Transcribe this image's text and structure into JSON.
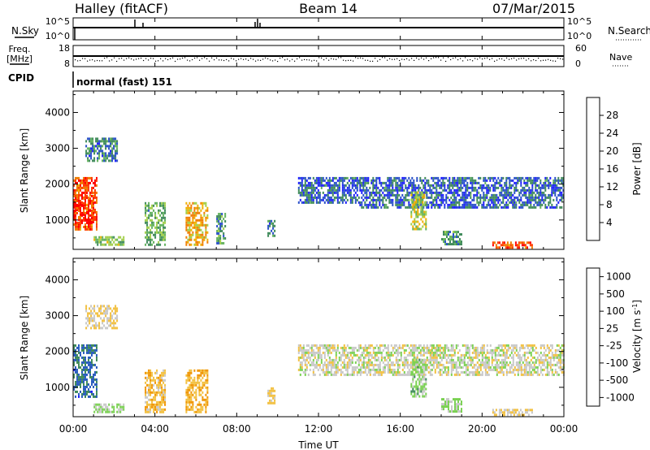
{
  "header": {
    "station": "Halley (fitACF)",
    "beam": "Beam 14",
    "date": "07/Mar/2015"
  },
  "top_panel": {
    "left_label": "N.Sky",
    "right_label": "N.Search",
    "left_ticks": [
      "10^5",
      "10^0"
    ],
    "right_ticks": [
      "10^5",
      "10^0"
    ]
  },
  "freq_panel": {
    "left_label_1": "Freq.",
    "left_label_2": "[MHz]",
    "right_label": "Nave",
    "left_ticks": [
      "18",
      "8"
    ],
    "right_ticks": [
      "60",
      "0"
    ]
  },
  "cpid": {
    "label": "CPID",
    "value": "normal (fast) 151"
  },
  "time_axis": {
    "label": "Time UT",
    "ticks": [
      "00:00",
      "04:00",
      "08:00",
      "12:00",
      "16:00",
      "20:00",
      "00:00"
    ]
  },
  "colors": {
    "power": [
      "#1d1dff",
      "#2850c8",
      "#3f8a5a",
      "#62b15d",
      "#a2ce4a",
      "#f0b000",
      "#f07d00",
      "#ff3d00",
      "#ff0000"
    ],
    "velocity": [
      "#ff0000",
      "#ee5200",
      "#f09400",
      "#f2c040",
      "#c8c8c8",
      "#7ad152",
      "#3f8a5a",
      "#2a5cbf",
      "#1d1dff"
    ]
  },
  "chart_data": [
    {
      "type": "heatmap",
      "title": "",
      "xlabel": "Time UT",
      "ylabel": "Slant Range [km]",
      "xlim": [
        0,
        24
      ],
      "ylim": [
        180,
        4600
      ],
      "yticks": [
        "1000",
        "2000",
        "3000",
        "4000"
      ],
      "colorbar": {
        "label": "Power [dB]",
        "ticks": [
          "4",
          "8",
          "12",
          "16",
          "20",
          "24",
          "28"
        ],
        "range": [
          0,
          32
        ]
      },
      "regions": [
        {
          "x": [
            0.0,
            1.2
          ],
          "y": [
            700,
            2200
          ],
          "value": 26
        },
        {
          "x": [
            0.0,
            1.0
          ],
          "y": [
            900,
            1700
          ],
          "value": 28
        },
        {
          "x": [
            0.6,
            2.2
          ],
          "y": [
            2600,
            3300
          ],
          "value": 8
        },
        {
          "x": [
            1.0,
            2.5
          ],
          "y": [
            250,
            550
          ],
          "value": 14
        },
        {
          "x": [
            3.5,
            4.5
          ],
          "y": [
            300,
            1500
          ],
          "value": 12
        },
        {
          "x": [
            5.5,
            6.6
          ],
          "y": [
            250,
            1500
          ],
          "value": 20
        },
        {
          "x": [
            7.0,
            7.5
          ],
          "y": [
            300,
            1200
          ],
          "value": 10
        },
        {
          "x": [
            9.5,
            9.9
          ],
          "y": [
            500,
            1000
          ],
          "value": 8
        },
        {
          "x": [
            11.0,
            14.0
          ],
          "y": [
            1450,
            2200
          ],
          "value": 6
        },
        {
          "x": [
            14.0,
            24.0
          ],
          "y": [
            1350,
            2200
          ],
          "value": 6
        },
        {
          "x": [
            16.5,
            17.3
          ],
          "y": [
            700,
            1800
          ],
          "value": 16
        },
        {
          "x": [
            18.0,
            19.0
          ],
          "y": [
            300,
            700
          ],
          "value": 10
        },
        {
          "x": [
            20.5,
            22.5
          ],
          "y": [
            200,
            400
          ],
          "value": 26
        }
      ]
    },
    {
      "type": "heatmap",
      "title": "",
      "xlabel": "Time UT",
      "ylabel": "Slant Range [km]",
      "xlim": [
        0,
        24
      ],
      "ylim": [
        180,
        4600
      ],
      "yticks": [
        "1000",
        "2000",
        "3000",
        "4000"
      ],
      "colorbar": {
        "label": "Velocity [m s^-1]",
        "ticks": [
          "1000",
          "500",
          "100",
          "25",
          "-25",
          "-100",
          "-500",
          "-1000"
        ],
        "range": [
          -1200,
          1200
        ]
      },
      "regions": [
        {
          "x": [
            0.0,
            1.2
          ],
          "y": [
            700,
            2200
          ],
          "value": 700
        },
        {
          "x": [
            0.6,
            2.2
          ],
          "y": [
            2600,
            3300
          ],
          "value": -150
        },
        {
          "x": [
            1.0,
            2.5
          ],
          "y": [
            250,
            550
          ],
          "value": 150
        },
        {
          "x": [
            3.5,
            4.5
          ],
          "y": [
            300,
            1500
          ],
          "value": -300
        },
        {
          "x": [
            5.5,
            6.6
          ],
          "y": [
            250,
            1500
          ],
          "value": -400
        },
        {
          "x": [
            9.5,
            9.9
          ],
          "y": [
            500,
            1000
          ],
          "value": -150
        },
        {
          "x": [
            11.0,
            24.0
          ],
          "y": [
            1350,
            2200
          ],
          "value": 0
        },
        {
          "x": [
            16.5,
            17.3
          ],
          "y": [
            700,
            1800
          ],
          "value": 200
        },
        {
          "x": [
            18.0,
            19.0
          ],
          "y": [
            300,
            700
          ],
          "value": 150
        },
        {
          "x": [
            20.5,
            22.5
          ],
          "y": [
            200,
            400
          ],
          "value": -150
        }
      ]
    }
  ]
}
